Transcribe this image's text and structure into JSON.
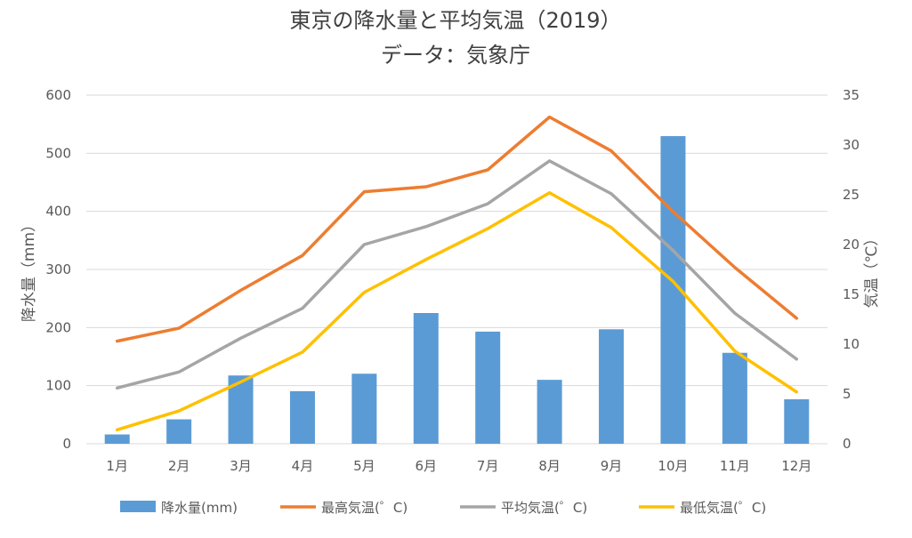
{
  "chart_data": {
    "type": "bar+line",
    "title": "東京の降水量と平均気温（2019）",
    "subtitle": "データ：気象庁",
    "categories": [
      "1月",
      "2月",
      "3月",
      "4月",
      "5月",
      "6月",
      "7月",
      "8月",
      "9月",
      "10月",
      "11月",
      "12月"
    ],
    "ylabel": "降水量（mm）",
    "y2label": "気温（℃）",
    "ylim": [
      0,
      600
    ],
    "y2lim": [
      0,
      35
    ],
    "yticks": [
      "0",
      "100",
      "200",
      "300",
      "400",
      "500",
      "600"
    ],
    "y2ticks": [
      "0",
      "5",
      "10",
      "15",
      "20",
      "25",
      "30",
      "35"
    ],
    "grid": true,
    "legend_position": "bottom",
    "series": [
      {
        "name": "降水量(mm)",
        "type": "bar",
        "axis": "left",
        "color": "#5B9BD5",
        "values": [
          16.0,
          42.0,
          117.5,
          90.5,
          120.5,
          225.0,
          193.0,
          110.0,
          197.0,
          529.5,
          156.5,
          76.5
        ]
      },
      {
        "name": "最高気温(゜C)",
        "type": "line",
        "axis": "right",
        "color": "#ED7D31",
        "values": [
          10.3,
          11.6,
          15.4,
          18.9,
          25.3,
          25.8,
          27.5,
          32.8,
          29.4,
          23.3,
          17.7,
          12.6
        ]
      },
      {
        "name": "平均気温(゜C)",
        "type": "line",
        "axis": "right",
        "color": "#A5A5A5",
        "values": [
          5.6,
          7.2,
          10.6,
          13.6,
          20.0,
          21.8,
          24.1,
          28.4,
          25.1,
          19.4,
          13.1,
          8.5
        ]
      },
      {
        "name": "最低気温(゜C)",
        "type": "line",
        "axis": "right",
        "color": "#FFC000",
        "values": [
          1.4,
          3.3,
          6.2,
          9.2,
          15.2,
          18.5,
          21.6,
          25.2,
          21.7,
          16.3,
          9.3,
          5.2
        ]
      }
    ]
  }
}
